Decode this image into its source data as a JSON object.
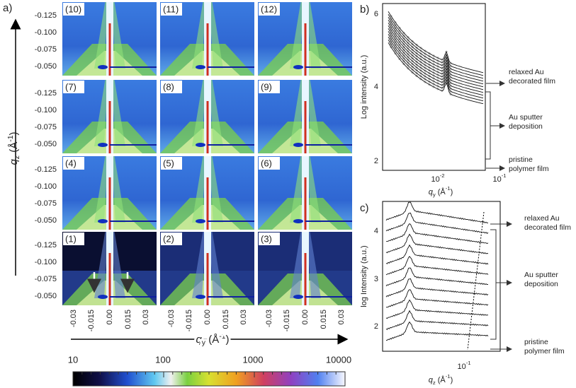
{
  "figure": {
    "a": {
      "label": "a)",
      "panels": [
        "(10)",
        "(11)",
        "(12)",
        "(7)",
        "(8)",
        "(9)",
        "(4)",
        "(5)",
        "(6)",
        "(1)",
        "(2)",
        "(3)"
      ],
      "y_ticks": [
        "-0.125",
        "-0.100",
        "-0.075",
        "-0.050"
      ],
      "x_ticks": [
        "-0.03",
        "-0.015",
        "0.00",
        "0.015",
        "0.03"
      ],
      "y_axis": {
        "symbol": "q",
        "subscript": "z",
        "unit": "(Å",
        "exponent": "-1",
        "unit_end": ")"
      },
      "x_axis": {
        "symbol": "q",
        "subscript": "y",
        "unit": "(Å",
        "exponent": "-1",
        "unit_end": ")"
      },
      "colorbar": {
        "ticks": [
          "10",
          "100",
          "1000",
          "10000"
        ]
      }
    },
    "b": {
      "label": "b)",
      "y_label": "Log intensity (a.u.)",
      "y_ticks": [
        "2",
        "4",
        "6"
      ],
      "x_ticks": [
        {
          "base": "10",
          "exp": "-2"
        },
        {
          "base": "10",
          "exp": "-1"
        }
      ],
      "x_axis": {
        "symbol": "q",
        "subscript": "y",
        "unit": "(Å",
        "exponent": "-1",
        "unit_end": ")"
      },
      "annotations": [
        [
          "relaxed Au",
          "decorated film"
        ],
        [
          "Au sputter",
          "deposition"
        ],
        [
          "pristine",
          "polymer film"
        ]
      ]
    },
    "c": {
      "label": "c)",
      "y_label": "log Intensity (a.u.)",
      "y_ticks": [
        "2",
        "3",
        "4"
      ],
      "x_ticks": [
        {
          "base": "10",
          "exp": "-1"
        }
      ],
      "x_axis": {
        "symbol": "q",
        "subscript": "z",
        "unit": "(Å",
        "exponent": "-1",
        "unit_end": ")"
      },
      "annotations": [
        [
          "relaxed Au",
          "decorated film"
        ],
        [
          "Au sputter",
          "deposition"
        ],
        [
          "pristine",
          "polymer film"
        ]
      ]
    }
  }
}
